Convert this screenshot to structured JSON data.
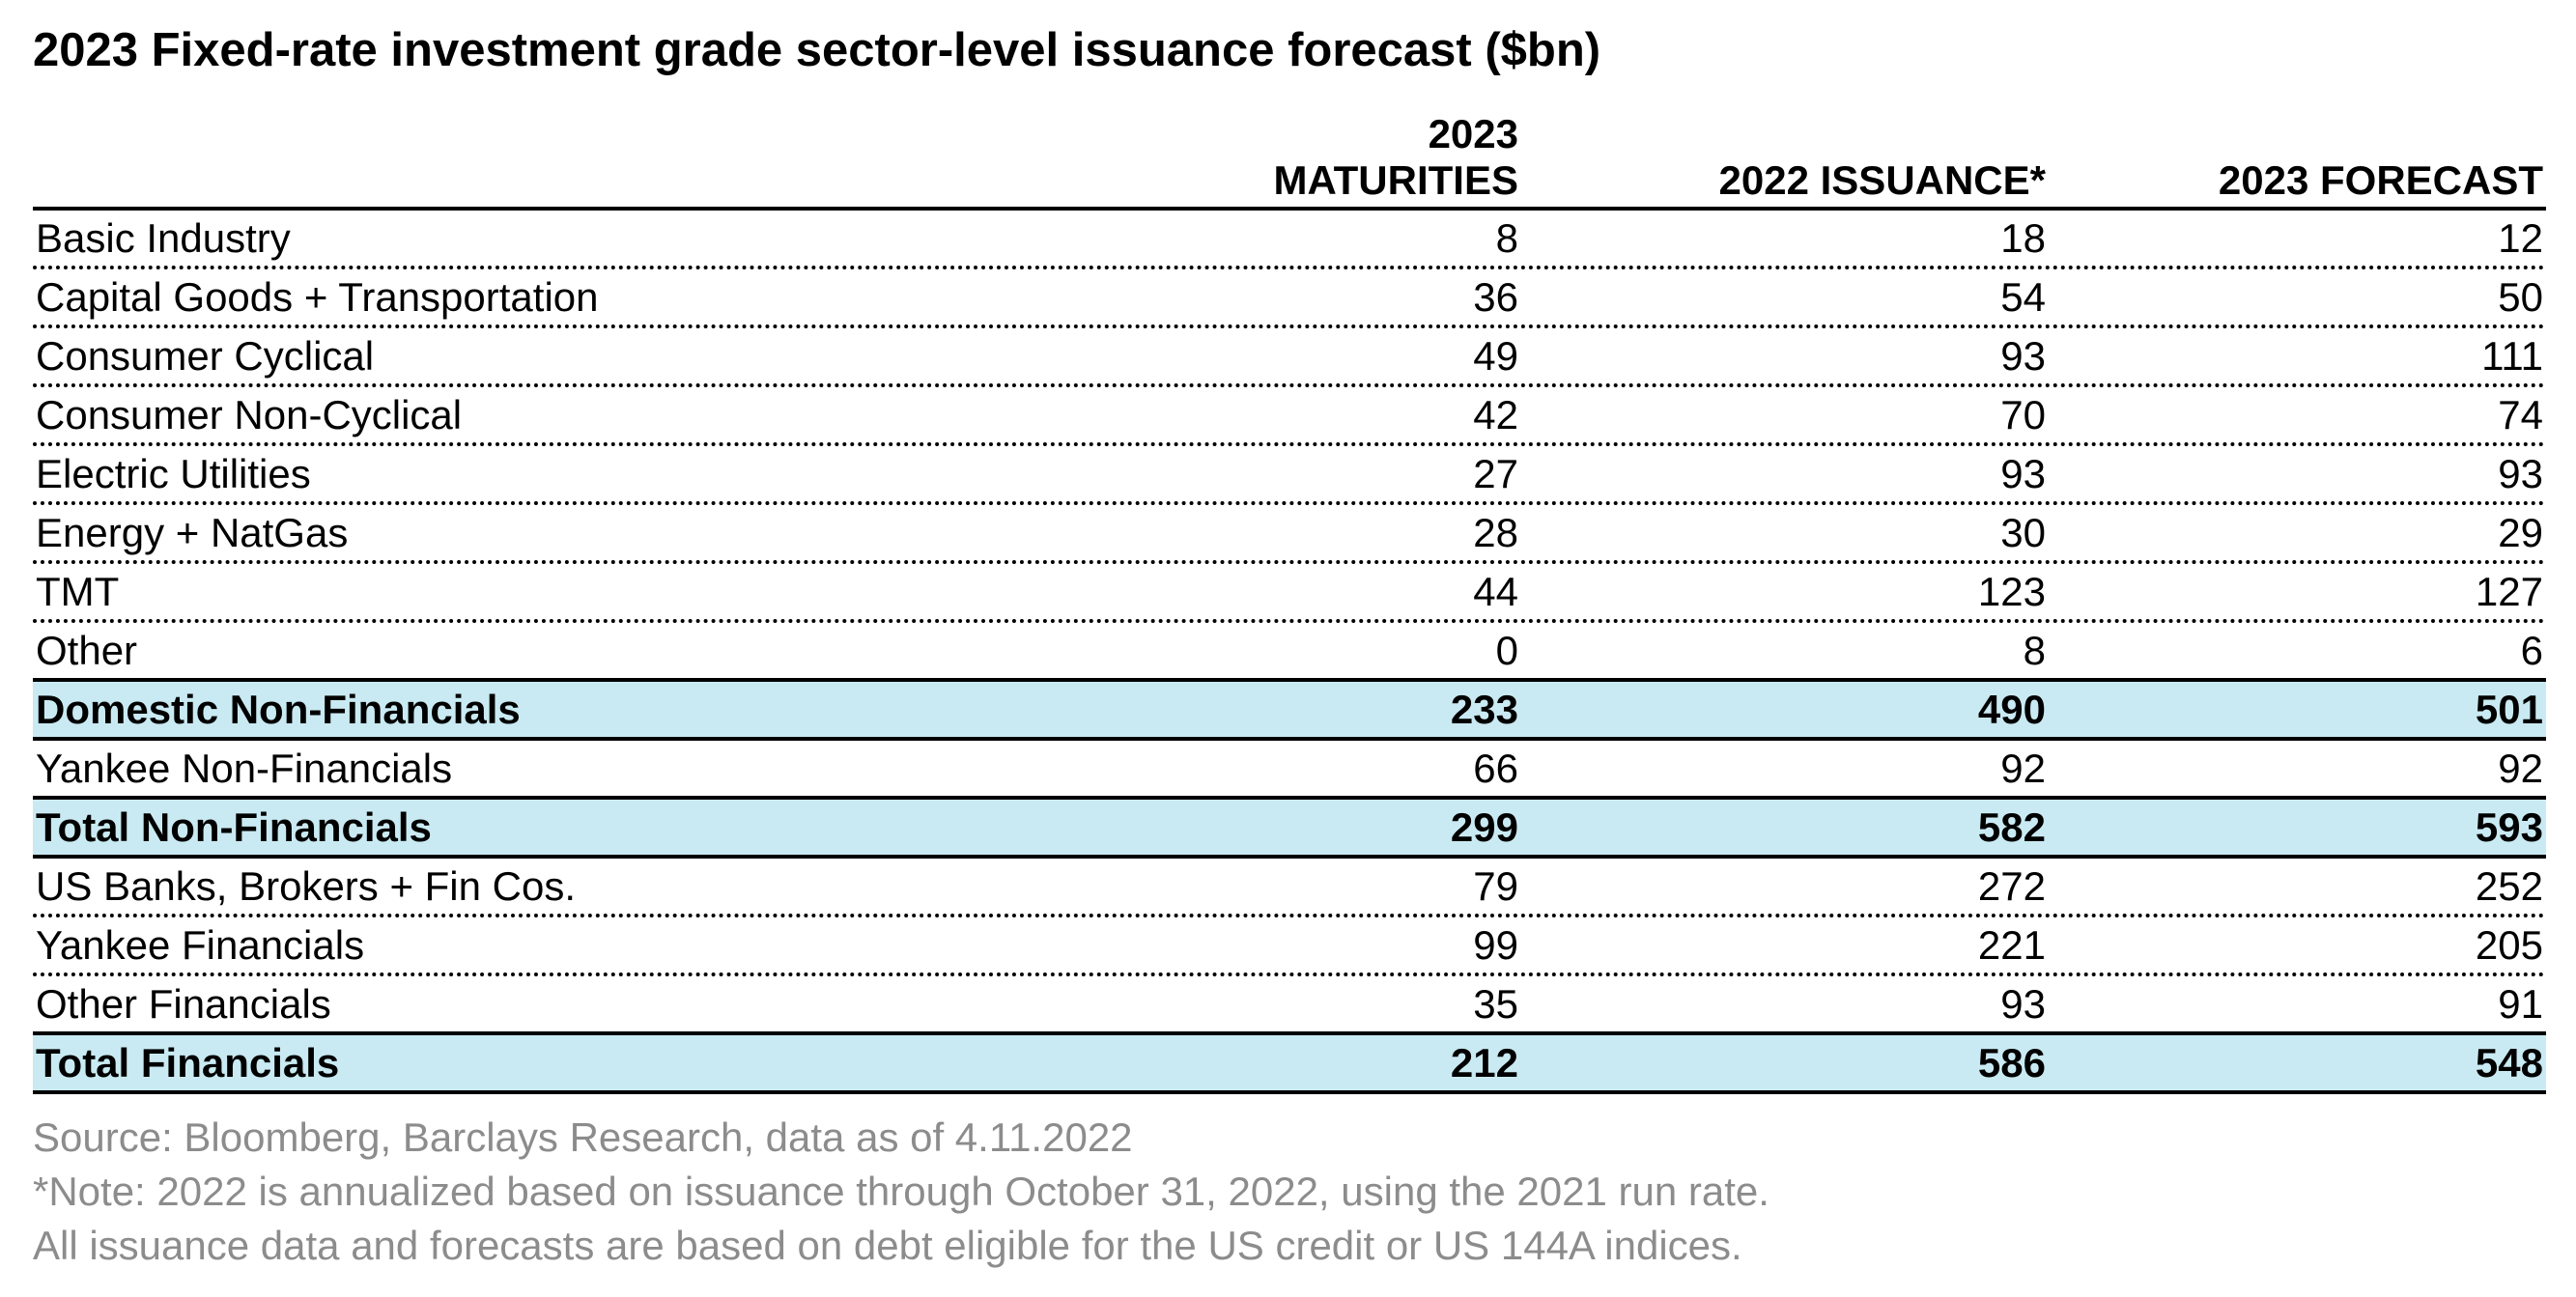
{
  "chart_data": {
    "type": "table",
    "title": "2023 Fixed-rate investment grade sector-level issuance forecast ($bn)",
    "columns": [
      {
        "line1": "2023",
        "line2": "MATURITIES"
      },
      {
        "line1": "",
        "line2": "2022 ISSUANCE*"
      },
      {
        "line1": "",
        "line2": "2023 FORECAST"
      }
    ],
    "rows": [
      {
        "label": "Basic Industry",
        "values": [
          "8",
          "18",
          "12"
        ],
        "total": false
      },
      {
        "label": "Capital Goods + Transportation",
        "values": [
          "36",
          "54",
          "50"
        ],
        "total": false
      },
      {
        "label": "Consumer Cyclical",
        "values": [
          "49",
          "93",
          "111"
        ],
        "total": false
      },
      {
        "label": "Consumer Non-Cyclical",
        "values": [
          "42",
          "70",
          "74"
        ],
        "total": false
      },
      {
        "label": "Electric Utilities",
        "values": [
          "27",
          "93",
          "93"
        ],
        "total": false
      },
      {
        "label": "Energy + NatGas",
        "values": [
          "28",
          "30",
          "29"
        ],
        "total": false
      },
      {
        "label": "TMT",
        "values": [
          "44",
          "123",
          "127"
        ],
        "total": false
      },
      {
        "label": "Other",
        "values": [
          "0",
          "8",
          "6"
        ],
        "total": false
      },
      {
        "label": "Domestic Non-Financials",
        "values": [
          "233",
          "490",
          "501"
        ],
        "total": true
      },
      {
        "label": "Yankee Non-Financials",
        "values": [
          "66",
          "92",
          "92"
        ],
        "total": false
      },
      {
        "label": "Total Non-Financials",
        "values": [
          "299",
          "582",
          "593"
        ],
        "total": true
      },
      {
        "label": "US Banks, Brokers + Fin Cos.",
        "values": [
          "79",
          "272",
          "252"
        ],
        "total": false
      },
      {
        "label": "Yankee Financials",
        "values": [
          "99",
          "221",
          "205"
        ],
        "total": false
      },
      {
        "label": "Other Financials",
        "values": [
          "35",
          "93",
          "91"
        ],
        "total": false
      },
      {
        "label": "Total Financials",
        "values": [
          "212",
          "586",
          "548"
        ],
        "total": true
      }
    ],
    "highlight_color": "#c9eaf2",
    "footnote_color": "#8c8c8c"
  },
  "footnotes": [
    "Source: Bloomberg, Barclays Research, data as of 4.11.2022",
    "*Note: 2022 is annualized based on issuance through October 31, 2022, using the 2021 run rate.",
    "All issuance data and forecasts are based on debt eligible for the US credit or US 144A indices."
  ]
}
